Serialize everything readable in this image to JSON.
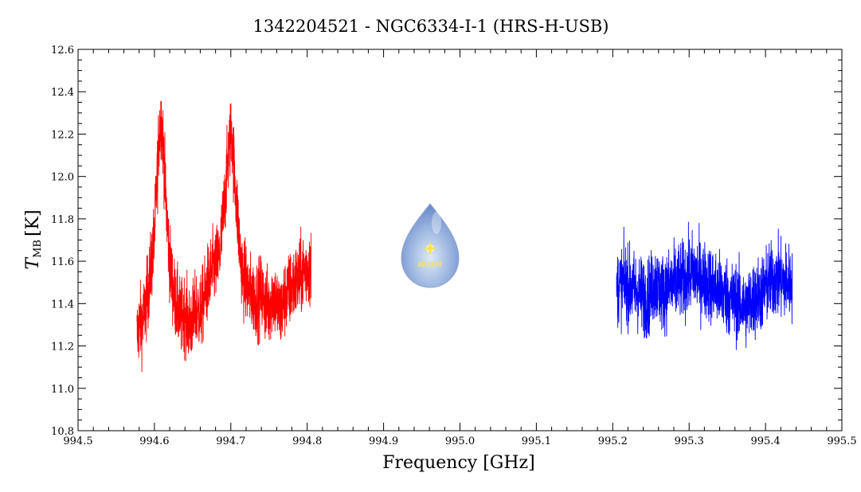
{
  "chart_data": {
    "type": "line",
    "title": "1342204521 - NGC6334-I-1 (HRS-H-USB)",
    "xlabel": "Frequency [GHz]",
    "ylabel_main": "T",
    "ylabel_sub": "MB",
    "ylabel_unit": "[K]",
    "xlim": [
      994.5,
      995.5
    ],
    "ylim": [
      10.8,
      12.6
    ],
    "x_ticks": [
      "994.5",
      "994.6",
      "994.7",
      "994.8",
      "994.9",
      "995.0",
      "995.1",
      "995.2",
      "995.3",
      "995.4",
      "995.5"
    ],
    "y_ticks": [
      "10.8",
      "11.0",
      "11.2",
      "11.4",
      "11.6",
      "11.8",
      "12.0",
      "12.2",
      "12.4",
      "12.6"
    ],
    "grid": false,
    "legend": "none",
    "logo_text": "WISH",
    "series": [
      {
        "color": "#ff0000",
        "x": [
          994.577,
          994.58,
          994.585,
          994.59,
          994.595,
          994.6,
          994.603,
          994.606,
          994.609,
          994.612,
          994.615,
          994.62,
          994.625,
          994.63,
          994.635,
          994.64,
          994.645,
          994.65,
          994.655,
          994.66,
          994.665,
          994.67,
          994.675,
          994.68,
          994.685,
          994.69,
          994.694,
          994.698,
          994.701,
          994.704,
          994.708,
          994.712,
          994.716,
          994.72,
          994.725,
          994.73,
          994.735,
          994.74,
          994.745,
          994.75,
          994.755,
          994.76,
          994.765,
          994.77,
          994.775,
          994.78,
          994.785,
          994.79,
          994.795,
          994.8,
          994.805
        ],
        "y": [
          11.25,
          11.3,
          11.32,
          11.42,
          11.55,
          11.72,
          11.95,
          12.2,
          12.28,
          12.12,
          11.88,
          11.6,
          11.45,
          11.38,
          11.33,
          11.36,
          11.3,
          11.32,
          11.38,
          11.35,
          11.42,
          11.5,
          11.55,
          11.58,
          11.62,
          11.8,
          11.98,
          12.15,
          12.22,
          12.05,
          11.85,
          11.65,
          11.52,
          11.5,
          11.45,
          11.43,
          11.42,
          11.45,
          11.4,
          11.38,
          11.45,
          11.4,
          11.35,
          11.42,
          11.45,
          11.48,
          11.5,
          11.52,
          11.55,
          11.57,
          11.56
        ]
      },
      {
        "color": "#0000ff",
        "x": [
          995.205,
          995.215,
          995.225,
          995.235,
          995.245,
          995.255,
          995.265,
          995.275,
          995.285,
          995.295,
          995.305,
          995.315,
          995.325,
          995.335,
          995.345,
          995.355,
          995.365,
          995.375,
          995.385,
          995.395,
          995.405,
          995.415,
          995.425,
          995.435
        ],
        "y": [
          11.48,
          11.5,
          11.47,
          11.45,
          11.42,
          11.5,
          11.45,
          11.48,
          11.5,
          11.52,
          11.55,
          11.52,
          11.5,
          11.47,
          11.45,
          11.42,
          11.4,
          11.38,
          11.42,
          11.45,
          11.5,
          11.52,
          11.5,
          11.5
        ]
      }
    ]
  }
}
